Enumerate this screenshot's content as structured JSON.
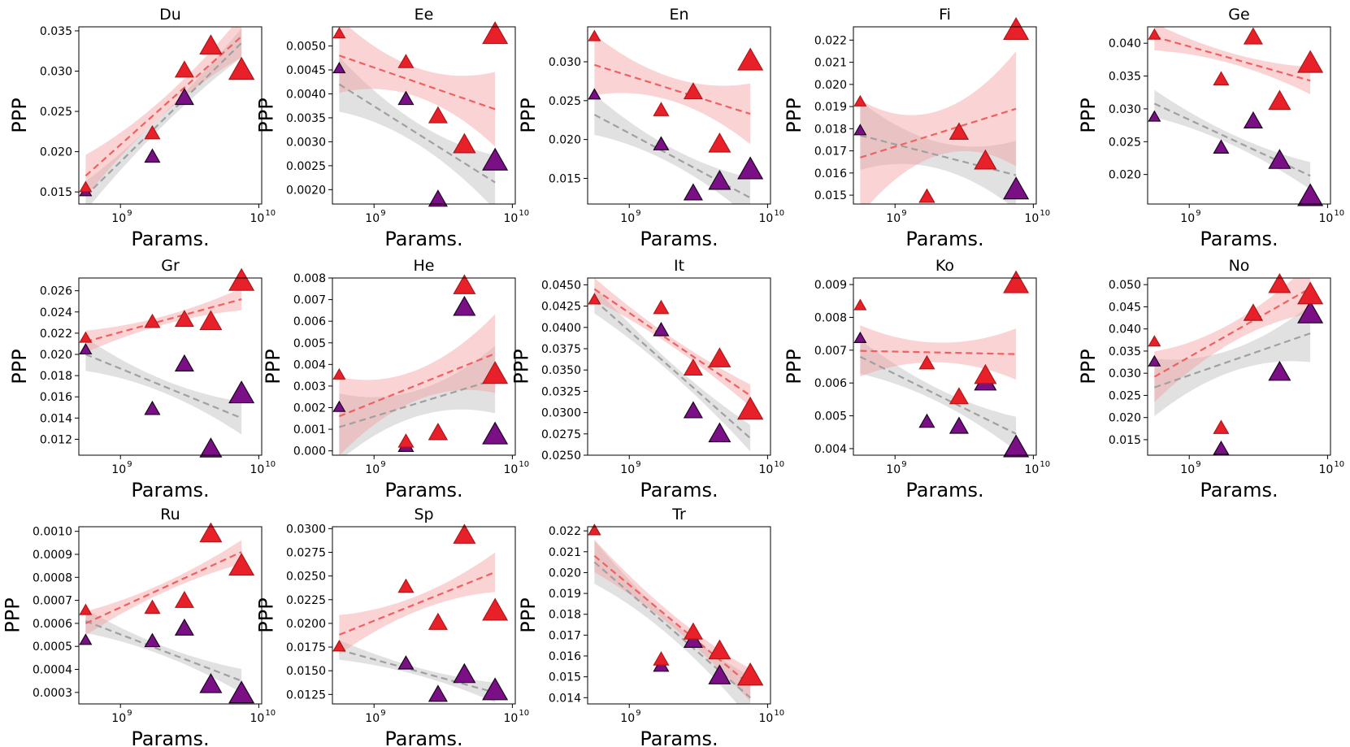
{
  "chart_data": {
    "type": "scatter",
    "xlabel": "Params.",
    "ylabel": "PPP",
    "x_scale": "log",
    "x": [
      560000000,
      1700000000,
      2900000000,
      4500000000,
      7500000000
    ],
    "x_ticks": [
      "10",
      "10"
    ],
    "x_tick_exponents": [
      "9",
      "10"
    ],
    "series_names": [
      "red",
      "purple"
    ],
    "panels": [
      {
        "title": "Du",
        "ylim": [
          0.0135,
          0.0355
        ],
        "yticks": [
          "0.015",
          "0.020",
          "0.025",
          "0.030",
          "0.035"
        ],
        "ytick_values": [
          0.015,
          0.02,
          0.025,
          0.03,
          0.035
        ],
        "red": [
          0.0155,
          0.0222,
          0.03,
          0.033,
          0.03
        ],
        "purple": [
          0.015,
          0.0193,
          0.0266,
          0.033,
          0.03
        ],
        "red_fit": [
          0.017,
          0.0343
        ],
        "gray_fit": [
          0.0145,
          0.0335
        ],
        "red_band": 0.001,
        "gray_band": 0.0007
      },
      {
        "title": "Ee",
        "ylim": [
          0.0017,
          0.0054
        ],
        "yticks": [
          "0.0020",
          "0.0025",
          "0.0030",
          "0.0035",
          "0.0040",
          "0.0045",
          "0.0050"
        ],
        "ytick_values": [
          0.002,
          0.0025,
          0.003,
          0.0035,
          0.004,
          0.0045,
          0.005
        ],
        "red": [
          0.00525,
          0.00465,
          0.00352,
          0.00292,
          0.00522
        ],
        "purple": [
          0.00452,
          0.00388,
          0.00178,
          0.00292,
          0.00258
        ],
        "red_fit": [
          0.0048,
          0.00368
        ],
        "gray_fit": [
          0.0042,
          0.00215
        ],
        "red_band": 0.0003,
        "gray_band": 0.00022
      },
      {
        "title": "En",
        "ylim": [
          0.0117,
          0.0345
        ],
        "yticks": [
          "0.015",
          "0.020",
          "0.025",
          "0.030"
        ],
        "ytick_values": [
          0.015,
          0.02,
          0.025,
          0.03
        ],
        "red": [
          0.0332,
          0.0237,
          0.026,
          0.0193,
          0.03
        ],
        "purple": [
          0.0257,
          0.0193,
          0.013,
          0.0145,
          0.016
        ],
        "red_fit": [
          0.0296,
          0.0233
        ],
        "gray_fit": [
          0.0232,
          0.0125
        ],
        "red_band": 0.0015,
        "gray_band": 0.001
      },
      {
        "title": "Fi",
        "ylim": [
          0.0146,
          0.0226
        ],
        "yticks": [
          "0.015",
          "0.016",
          "0.017",
          "0.018",
          "0.019",
          "0.020",
          "0.021",
          "0.022"
        ],
        "ytick_values": [
          0.015,
          0.016,
          0.017,
          0.018,
          0.019,
          0.02,
          0.021,
          0.022
        ],
        "red": [
          0.0192,
          0.0149,
          0.0178,
          0.0165,
          0.0224
        ],
        "purple": [
          0.0179,
          0.0149,
          0.0178,
          0.0165,
          0.0152
        ],
        "red_fit": [
          0.0167,
          0.0189
        ],
        "gray_fit": [
          0.0177,
          0.0159
        ],
        "red_band": 0.001,
        "gray_band": 0.0006
      },
      {
        "title": "Ge",
        "ylim": [
          0.0155,
          0.0425
        ],
        "yticks": [
          "0.020",
          "0.025",
          "0.030",
          "0.035",
          "0.040"
        ],
        "ytick_values": [
          0.02,
          0.025,
          0.03,
          0.035,
          0.04
        ],
        "red": [
          0.0412,
          0.0344,
          0.0408,
          0.031,
          0.0368
        ],
        "purple": [
          0.0287,
          0.024,
          0.028,
          0.022,
          0.0165
        ],
        "red_fit": [
          0.041,
          0.0343
        ],
        "gray_fit": [
          0.0308,
          0.0198
        ],
        "red_band": 0.0008,
        "gray_band": 0.0008
      },
      {
        "title": "Gr",
        "ylim": [
          0.0105,
          0.0272
        ],
        "yticks": [
          "0.012",
          "0.014",
          "0.016",
          "0.018",
          "0.020",
          "0.022",
          "0.024",
          "0.026"
        ],
        "ytick_values": [
          0.012,
          0.014,
          0.016,
          0.018,
          0.02,
          0.022,
          0.024,
          0.026
        ],
        "red": [
          0.0215,
          0.023,
          0.0232,
          0.023,
          0.0268
        ],
        "purple": [
          0.0204,
          0.0148,
          0.019,
          0.011,
          0.0162
        ],
        "red_fit": [
          0.0212,
          0.0252
        ],
        "gray_fit": [
          0.02,
          0.014
        ],
        "red_band": 0.0004,
        "gray_band": 0.0006
      },
      {
        "title": "He",
        "ylim": [
          -0.0002,
          0.008
        ],
        "yticks": [
          "0.000",
          "0.001",
          "0.002",
          "0.003",
          "0.004",
          "0.005",
          "0.006",
          "0.007",
          "0.008"
        ],
        "ytick_values": [
          0.0,
          0.001,
          0.002,
          0.003,
          0.004,
          0.005,
          0.006,
          0.007,
          0.008
        ],
        "red": [
          0.0035,
          0.0004,
          0.0008,
          0.0076,
          0.0035
        ],
        "purple": [
          0.002,
          0.0002,
          0.0008,
          0.0066,
          0.0007
        ],
        "red_fit": [
          0.0016,
          0.0045
        ],
        "gray_fit": [
          0.0011,
          0.0033
        ],
        "red_band": 0.0007,
        "gray_band": 0.0006
      },
      {
        "title": "It",
        "ylim": [
          0.025,
          0.0458
        ],
        "yticks": [
          "0.0250",
          "0.0275",
          "0.0300",
          "0.0325",
          "0.0350",
          "0.0375",
          "0.0400",
          "0.0425",
          "0.0450"
        ],
        "ytick_values": [
          0.025,
          0.0275,
          0.03,
          0.0325,
          0.035,
          0.0375,
          0.04,
          0.0425,
          0.045
        ],
        "red": [
          0.0432,
          0.0422,
          0.0351,
          0.0362,
          0.0302
        ],
        "purple": [
          0.0432,
          0.0396,
          0.0301,
          0.0274,
          0.0302
        ],
        "red_fit": [
          0.0445,
          0.032
        ],
        "gray_fit": [
          0.0432,
          0.027
        ],
        "red_band": 0.0005,
        "gray_band": 0.0006
      },
      {
        "title": "Ko",
        "ylim": [
          0.0038,
          0.0092
        ],
        "yticks": [
          "0.004",
          "0.005",
          "0.006",
          "0.007",
          "0.008",
          "0.009"
        ],
        "ytick_values": [
          0.004,
          0.005,
          0.006,
          0.007,
          0.008,
          0.009
        ],
        "red": [
          0.00835,
          0.00658,
          0.00555,
          0.0062,
          0.009
        ],
        "purple": [
          0.00735,
          0.0048,
          0.00465,
          0.006,
          0.004
        ],
        "red_fit": [
          0.00698,
          0.00688
        ],
        "gray_fit": [
          0.0068,
          0.00445
        ],
        "red_band": 0.0003,
        "gray_band": 0.0002
      },
      {
        "title": "No",
        "ylim": [
          0.0115,
          0.0515
        ],
        "yticks": [
          "0.015",
          "0.020",
          "0.025",
          "0.030",
          "0.035",
          "0.040",
          "0.045",
          "0.050"
        ],
        "ytick_values": [
          0.015,
          0.02,
          0.025,
          0.03,
          0.035,
          0.04,
          0.045,
          0.05
        ],
        "red": [
          0.037,
          0.0175,
          0.0433,
          0.0498,
          0.0475
        ],
        "purple": [
          0.0325,
          0.0128,
          0.0433,
          0.03,
          0.0432
        ],
        "red_fit": [
          0.0292,
          0.0492
        ],
        "gray_fit": [
          0.0268,
          0.039
        ],
        "red_band": 0.0022,
        "gray_band": 0.0025
      },
      {
        "title": "Ru",
        "ylim": [
          0.00025,
          0.00102
        ],
        "yticks": [
          "0.0003",
          "0.0004",
          "0.0005",
          "0.0006",
          "0.0007",
          "0.0008",
          "0.0009",
          "0.0010"
        ],
        "ytick_values": [
          0.0003,
          0.0004,
          0.0005,
          0.0006,
          0.0007,
          0.0008,
          0.0009,
          0.001
        ],
        "red": [
          0.000655,
          0.000665,
          0.000695,
          0.000985,
          0.000845
        ],
        "purple": [
          0.000525,
          0.00052,
          0.000575,
          0.00033,
          0.00029
        ],
        "red_fit": [
          0.0006,
          0.00091
        ],
        "gray_fit": [
          0.00061,
          0.00035
        ],
        "red_band": 2e-05,
        "gray_band": 2e-05
      },
      {
        "title": "Sp",
        "ylim": [
          0.0115,
          0.0302
        ],
        "yticks": [
          "0.0125",
          "0.0150",
          "0.0175",
          "0.0200",
          "0.0225",
          "0.0250",
          "0.0275",
          "0.0300"
        ],
        "ytick_values": [
          0.0125,
          0.015,
          0.0175,
          0.02,
          0.0225,
          0.025,
          0.0275,
          0.03
        ],
        "red": [
          0.0175,
          0.0238,
          0.02,
          0.0292,
          0.0212
        ],
        "purple": [
          0.0175,
          0.0157,
          0.0124,
          0.0145,
          0.0128
        ],
        "red_fit": [
          0.0188,
          0.0254
        ],
        "gray_fit": [
          0.0172,
          0.0127
        ],
        "red_band": 0.0008,
        "gray_band": 0.0004
      },
      {
        "title": "Tr",
        "ylim": [
          0.0137,
          0.0222
        ],
        "yticks": [
          "0.014",
          "0.015",
          "0.016",
          "0.017",
          "0.018",
          "0.019",
          "0.020",
          "0.021",
          "0.022"
        ],
        "ytick_values": [
          0.014,
          0.015,
          0.016,
          0.017,
          0.018,
          0.019,
          0.02,
          0.021,
          0.022
        ],
        "red": [
          0.022,
          0.0158,
          0.0171,
          0.0162,
          0.015
        ],
        "purple": [
          0.022,
          0.0155,
          0.0167,
          0.015,
          0.015
        ],
        "red_fit": [
          0.0208,
          0.0146
        ],
        "gray_fit": [
          0.0205,
          0.014
        ],
        "red_band": 0.0003,
        "gray_band": 0.0004
      }
    ]
  },
  "colors": {
    "red_marker": "#e8202a",
    "purple_marker": "#7b0f86",
    "red_fit": "#f06060",
    "gray_fit": "#a0a0a0"
  }
}
